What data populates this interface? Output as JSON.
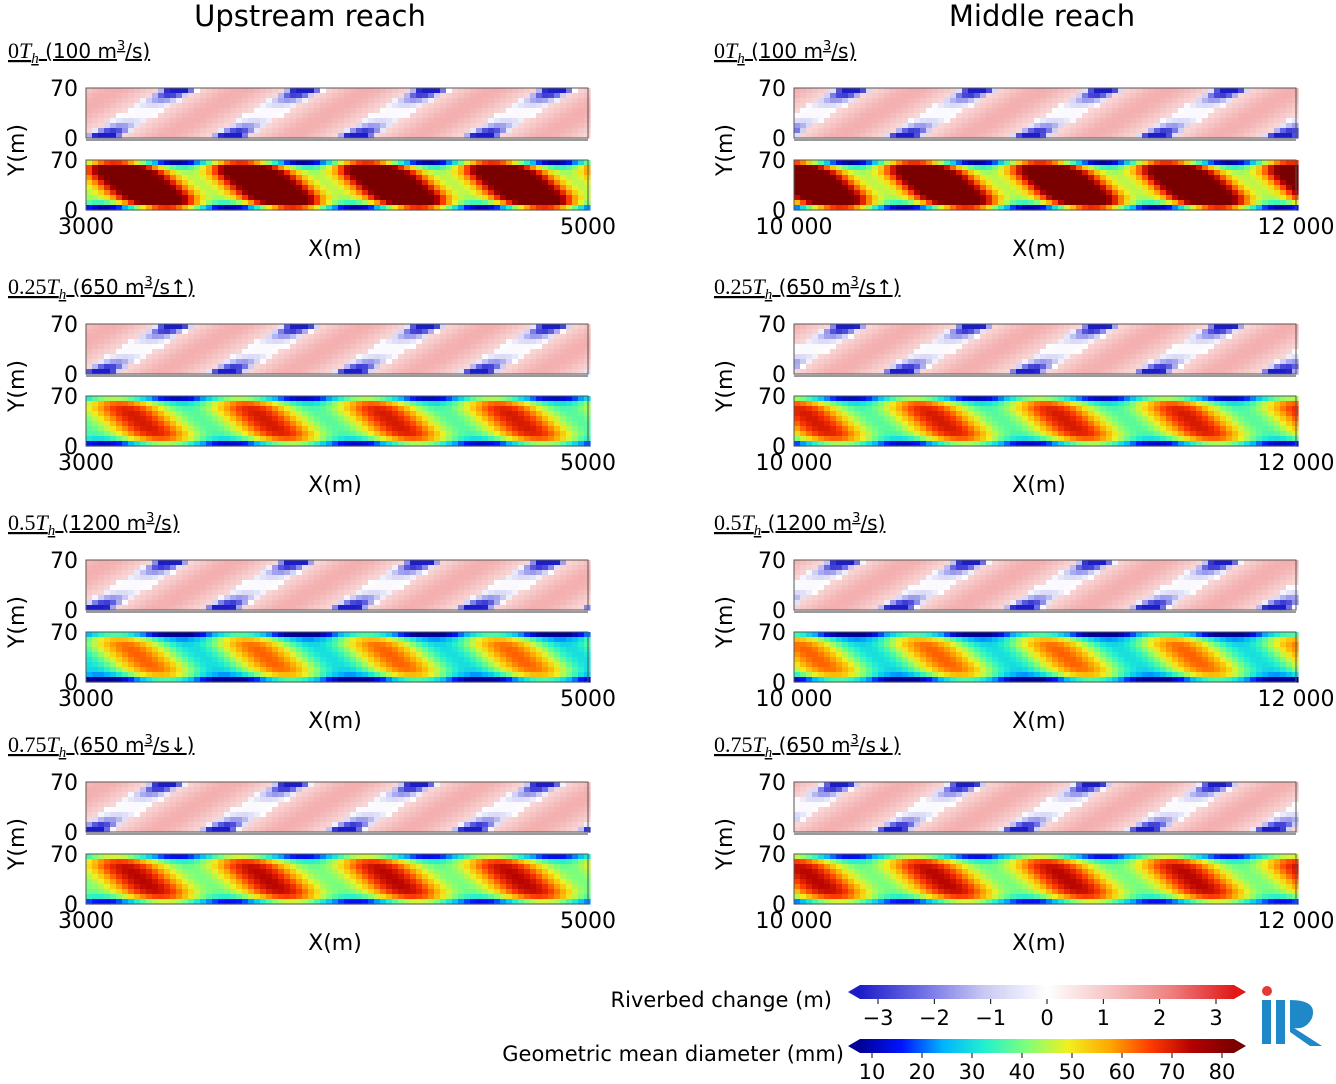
{
  "figure": {
    "upstream_title": "Upstream reach",
    "middle_title": "Middle reach",
    "y_axis_label": "Y(m)",
    "x_axis_label": "X(m)"
  },
  "colors": {
    "diverging": [
      "#1d1dc8",
      "#6f6fe6",
      "#c9c9f3",
      "#ffffff",
      "#f6c4c4",
      "#ee7f7f",
      "#e01818"
    ],
    "jet": [
      "#000096",
      "#0014ff",
      "#00b4ff",
      "#22f0d0",
      "#7dff7a",
      "#f0f020",
      "#ffa800",
      "#ff3a00",
      "#b30000",
      "#7a0000"
    ]
  },
  "chart_data": {
    "type": "heatmap",
    "description_layout": "4 time stages x 2 reaches; each panel has a riverbed-change map (top) and a geometric-mean-diameter map (bottom)",
    "reaches": [
      {
        "name": "Upstream reach",
        "xlim": [
          3000,
          5000
        ],
        "x_ticks": [
          "3000",
          "5000"
        ],
        "ylim": [
          0,
          70
        ],
        "y_ticks": [
          "70",
          "0"
        ],
        "bars": 4,
        "bar_offset": 0.05
      },
      {
        "name": "Middle reach",
        "xlim": [
          10000,
          12000
        ],
        "x_ticks": [
          "10 000",
          "12 000"
        ],
        "ylim": [
          0,
          70
        ],
        "y_ticks": [
          "70",
          "0"
        ],
        "bars": 4,
        "bar_offset": 0.32
      }
    ],
    "stages": [
      {
        "pre": "0",
        "unit_main": "T",
        "unit_sub": "h",
        "post": " (100 m",
        "sup": "3",
        "end": "/s)",
        "arrow": "",
        "discharge": 100,
        "grain_level": 0.9
      },
      {
        "pre": "0.25",
        "unit_main": "T",
        "unit_sub": "h",
        "post": " (650 m",
        "sup": "3",
        "end": "/s",
        "arrow": "↑",
        "close": ")",
        "discharge": 650,
        "grain_level": 0.62
      },
      {
        "pre": "0.5",
        "unit_main": "T",
        "unit_sub": "h",
        "post": " (1200 m",
        "sup": "3",
        "end": "/s)",
        "arrow": "",
        "discharge": 1200,
        "grain_level": 0.52
      },
      {
        "pre": "0.75",
        "unit_main": "T",
        "unit_sub": "h",
        "post": " (650 m",
        "sup": "3",
        "end": "/s",
        "arrow": "↓",
        "close": ")",
        "discharge": 650,
        "grain_level": 0.66
      }
    ],
    "colorbars": [
      {
        "label": "Riverbed change (m)",
        "ticks": [
          "−3",
          "−2",
          "−1",
          "0",
          "1",
          "2",
          "3"
        ],
        "range": [
          -3,
          3
        ],
        "cmap": "diverging"
      },
      {
        "label": "Geometric mean diameter (mm)",
        "ticks": [
          "10",
          "20",
          "30",
          "40",
          "50",
          "60",
          "70",
          "80"
        ],
        "range": [
          10,
          80
        ],
        "cmap": "jet"
      }
    ]
  },
  "logo": {
    "text": "iiR"
  }
}
